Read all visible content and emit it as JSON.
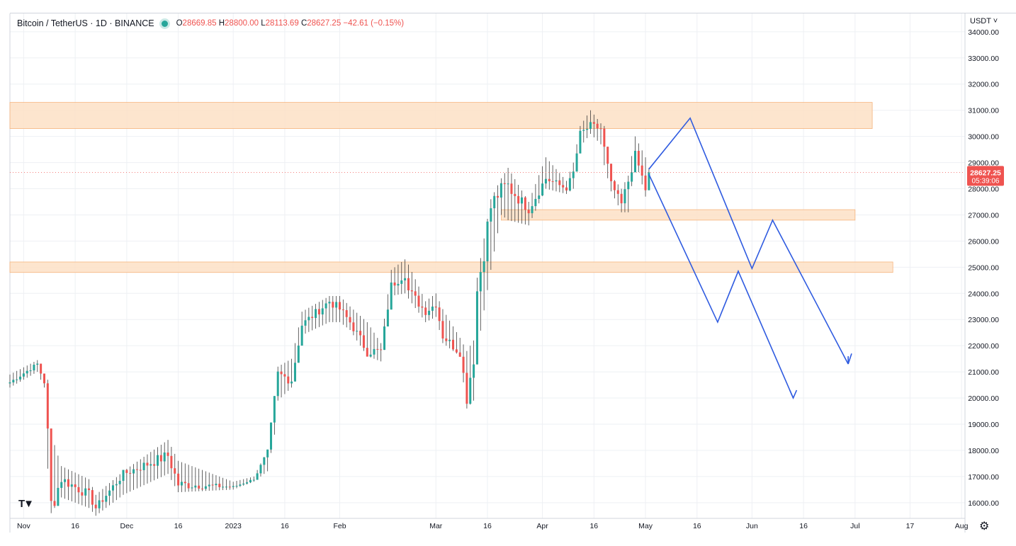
{
  "header": {
    "symbol": "Bitcoin / TetherUS · 1D · BINANCE",
    "open": "28669.85",
    "high": "28800.00",
    "low": "28113.69",
    "close": "28627.25",
    "change": "−42.61 (−0.15%)",
    "status_dot_icon": "market-open-dot-icon"
  },
  "price_axis": {
    "currency": "USDT ˅",
    "last_price": "28627.25",
    "countdown": "05:39:06",
    "last_price_color": "#ef5350"
  },
  "time_axis": {
    "labels": [
      "Nov",
      "16",
      "Dec",
      "16",
      "2023",
      "16",
      "Feb",
      "Mar",
      "16",
      "Apr",
      "16",
      "May",
      "16",
      "Jun",
      "16",
      "Jul",
      "17",
      "Aug"
    ]
  },
  "toolbar": {
    "logo_icon": "tradingview-logo-icon",
    "settings_icon": "gear-icon"
  },
  "colors": {
    "up": "#26a69a",
    "down": "#ef5350",
    "wick": "#3b3b3b",
    "zone": "#fde0c5",
    "zone_border": "#f6b47d",
    "projection": "#2f5be0",
    "grid": "#eef0f4"
  },
  "chart_data": {
    "type": "candlestick",
    "title": "Bitcoin / TetherUS · 1D · BINANCE",
    "currency": "USDT",
    "ylim": [
      15400,
      34700
    ],
    "y_ticks": [
      16000,
      17000,
      18000,
      19000,
      20000,
      21000,
      22000,
      23000,
      24000,
      25000,
      26000,
      27000,
      28000,
      29000,
      30000,
      31000,
      32000,
      33000,
      34000
    ],
    "x_range": [
      "2022-10-28",
      "2023-08-02"
    ],
    "grid": true,
    "x_ticks": [
      {
        "date": "2022-11-01",
        "label": "Nov"
      },
      {
        "date": "2022-11-16",
        "label": "16"
      },
      {
        "date": "2022-12-01",
        "label": "Dec"
      },
      {
        "date": "2022-12-16",
        "label": "16"
      },
      {
        "date": "2023-01-01",
        "label": "2023"
      },
      {
        "date": "2023-01-16",
        "label": "16"
      },
      {
        "date": "2023-02-01",
        "label": "Feb"
      },
      {
        "date": "2023-03-01",
        "label": "Mar"
      },
      {
        "date": "2023-03-16",
        "label": "16"
      },
      {
        "date": "2023-04-01",
        "label": "Apr"
      },
      {
        "date": "2023-04-16",
        "label": "16"
      },
      {
        "date": "2023-05-01",
        "label": "May"
      },
      {
        "date": "2023-05-16",
        "label": "16"
      },
      {
        "date": "2023-06-01",
        "label": "Jun"
      },
      {
        "date": "2023-06-16",
        "label": "16"
      },
      {
        "date": "2023-07-01",
        "label": "Jul"
      },
      {
        "date": "2023-07-17",
        "label": "17"
      },
      {
        "date": "2023-08-01",
        "label": "Aug"
      }
    ],
    "anchors": [
      {
        "date": "2022-10-28",
        "close": 20600,
        "high": 20900,
        "low": 20400
      },
      {
        "date": "2022-11-05",
        "close": 21300,
        "high": 21450,
        "low": 21000
      },
      {
        "date": "2022-11-07",
        "close": 20600,
        "high": 20900,
        "low": 20400
      },
      {
        "date": "2022-11-08",
        "close": 18500,
        "high": 20700,
        "low": 17300
      },
      {
        "date": "2022-11-09",
        "close": 15900,
        "high": 18600,
        "low": 15600
      },
      {
        "date": "2022-11-12",
        "close": 16900,
        "high": 17400,
        "low": 16200
      },
      {
        "date": "2022-11-20",
        "close": 16300,
        "high": 16900,
        "low": 15800
      },
      {
        "date": "2022-11-22",
        "close": 15800,
        "high": 16300,
        "low": 15500
      },
      {
        "date": "2022-11-30",
        "close": 17100,
        "high": 17200,
        "low": 16300
      },
      {
        "date": "2022-12-13",
        "close": 17800,
        "high": 18400,
        "low": 17100
      },
      {
        "date": "2022-12-16",
        "close": 16700,
        "high": 17600,
        "low": 16400
      },
      {
        "date": "2023-01-01",
        "close": 16600,
        "high": 16800,
        "low": 16500
      },
      {
        "date": "2023-01-07",
        "close": 16900,
        "high": 17000,
        "low": 16800
      },
      {
        "date": "2023-01-11",
        "close": 17900,
        "high": 18000,
        "low": 17200
      },
      {
        "date": "2023-01-13",
        "close": 19900,
        "high": 20000,
        "low": 18600
      },
      {
        "date": "2023-01-14",
        "close": 20900,
        "high": 21200,
        "low": 19900
      },
      {
        "date": "2023-01-18",
        "close": 20700,
        "high": 21500,
        "low": 20400
      },
      {
        "date": "2023-01-21",
        "close": 22800,
        "high": 23300,
        "low": 22400
      },
      {
        "date": "2023-01-29",
        "close": 23700,
        "high": 23900,
        "low": 22900
      },
      {
        "date": "2023-02-01",
        "close": 23400,
        "high": 23900,
        "low": 22900
      },
      {
        "date": "2023-02-04",
        "close": 22900,
        "high": 23500,
        "low": 22600
      },
      {
        "date": "2023-02-09",
        "close": 21800,
        "high": 22900,
        "low": 21600
      },
      {
        "date": "2023-02-13",
        "close": 21800,
        "high": 22100,
        "low": 21400
      },
      {
        "date": "2023-02-16",
        "close": 24300,
        "high": 24900,
        "low": 23900
      },
      {
        "date": "2023-02-20",
        "close": 24800,
        "high": 25300,
        "low": 24000
      },
      {
        "date": "2023-02-21",
        "close": 24100,
        "high": 25100,
        "low": 23800
      },
      {
        "date": "2023-02-26",
        "close": 23300,
        "high": 23700,
        "low": 22900
      },
      {
        "date": "2023-03-01",
        "close": 23600,
        "high": 24000,
        "low": 23100
      },
      {
        "date": "2023-03-03",
        "close": 22400,
        "high": 23400,
        "low": 22100
      },
      {
        "date": "2023-03-08",
        "close": 21700,
        "high": 22300,
        "low": 21600
      },
      {
        "date": "2023-03-10",
        "close": 20100,
        "high": 21800,
        "low": 19600
      },
      {
        "date": "2023-03-12",
        "close": 21600,
        "high": 22200,
        "low": 19900
      },
      {
        "date": "2023-03-13",
        "close": 24100,
        "high": 24600,
        "low": 21800
      },
      {
        "date": "2023-03-17",
        "close": 27300,
        "high": 27600,
        "low": 24900
      },
      {
        "date": "2023-03-20",
        "close": 28000,
        "high": 28400,
        "low": 27000
      },
      {
        "date": "2023-03-22",
        "close": 28100,
        "high": 28800,
        "low": 26800
      },
      {
        "date": "2023-03-28",
        "close": 27200,
        "high": 27500,
        "low": 26600
      },
      {
        "date": "2023-04-02",
        "close": 28400,
        "high": 29200,
        "low": 28000
      },
      {
        "date": "2023-04-08",
        "close": 28000,
        "high": 28300,
        "low": 27800
      },
      {
        "date": "2023-04-10",
        "close": 28600,
        "high": 29000,
        "low": 28000
      },
      {
        "date": "2023-04-12",
        "close": 30100,
        "high": 30400,
        "low": 29600
      },
      {
        "date": "2023-04-15",
        "close": 30400,
        "high": 31000,
        "low": 30100
      },
      {
        "date": "2023-04-18",
        "close": 30300,
        "high": 30500,
        "low": 29700
      },
      {
        "date": "2023-04-19",
        "close": 29500,
        "high": 30400,
        "low": 28900
      },
      {
        "date": "2023-04-21",
        "close": 28200,
        "high": 28500,
        "low": 27900
      },
      {
        "date": "2023-04-24",
        "close": 27400,
        "high": 28000,
        "low": 27100
      },
      {
        "date": "2023-04-26",
        "close": 28300,
        "high": 28500,
        "low": 27100
      },
      {
        "date": "2023-04-28",
        "close": 29300,
        "high": 30000,
        "low": 29100
      },
      {
        "date": "2023-05-01",
        "close": 28000,
        "high": 29200,
        "low": 27700
      },
      {
        "date": "2023-05-02",
        "close": 28627,
        "high": 28800,
        "low": 28100
      }
    ],
    "zones": [
      {
        "from": "2022-10-28",
        "to": "2023-07-06",
        "low": 30300,
        "high": 31300
      },
      {
        "from": "2023-03-20",
        "to": "2023-07-01",
        "low": 26800,
        "high": 27200
      },
      {
        "from": "2022-10-28",
        "to": "2023-07-12",
        "low": 24800,
        "high": 25200
      }
    ],
    "last_price": 28627.25,
    "projections": [
      {
        "points": [
          [
            "2023-05-02",
            28750
          ],
          [
            "2023-05-14",
            30700
          ],
          [
            "2023-06-01",
            24950
          ],
          [
            "2023-06-07",
            26800
          ],
          [
            "2023-06-29",
            21300
          ]
        ],
        "arrow": [
          [
            "2023-06-29",
            21300
          ],
          [
            "2023-06-29",
            21600
          ],
          [
            "2023-06-30",
            21700
          ]
        ]
      },
      {
        "points": [
          [
            "2023-05-02",
            28550
          ],
          [
            "2023-05-22",
            22900
          ],
          [
            "2023-05-28",
            24850
          ],
          [
            "2023-06-13",
            20000
          ]
        ],
        "arrow": [
          [
            "2023-06-13",
            20000
          ],
          [
            "2023-06-12",
            20300
          ],
          [
            "2023-06-14",
            20300
          ]
        ]
      }
    ]
  }
}
